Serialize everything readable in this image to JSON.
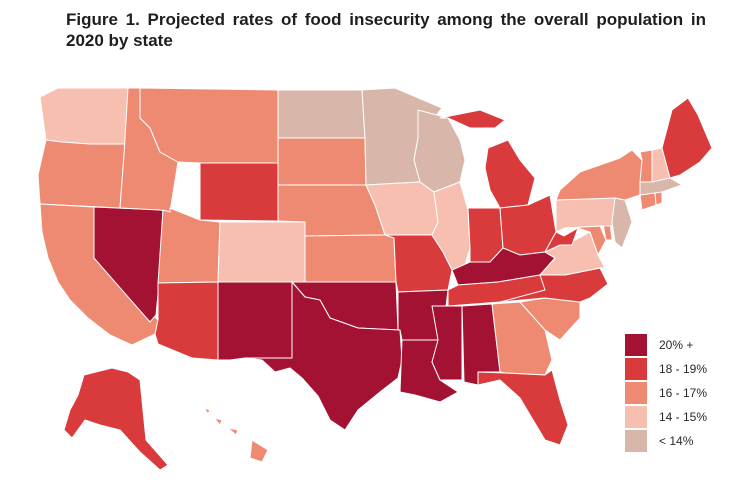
{
  "title": "Figure 1. Projected rates of food insecurity among the overall population in 2020 by state",
  "colors": {
    "c20": "#a31233",
    "c18": "#d93a3c",
    "c16": "#ef8a72",
    "c14": "#f7bfb0",
    "c12": "#d8b6aa",
    "border": "#ffffff"
  },
  "legend": [
    {
      "label": "20% +",
      "color": "#a31233"
    },
    {
      "label": "18 - 19%",
      "color": "#d93a3c"
    },
    {
      "label": "16 - 17%",
      "color": "#ef8a72"
    },
    {
      "label": "14 - 15%",
      "color": "#f7bfb0"
    },
    {
      "label": "< 14%",
      "color": "#d8b6aa"
    }
  ],
  "states": [
    {
      "name": "Washington",
      "class": "14 - 15%"
    },
    {
      "name": "Oregon",
      "class": "16 - 17%"
    },
    {
      "name": "California",
      "class": "16 - 17%"
    },
    {
      "name": "Nevada",
      "class": "20% +"
    },
    {
      "name": "Idaho",
      "class": "16 - 17%"
    },
    {
      "name": "Montana",
      "class": "16 - 17%"
    },
    {
      "name": "Wyoming",
      "class": "18 - 19%"
    },
    {
      "name": "Utah",
      "class": "16 - 17%"
    },
    {
      "name": "Arizona",
      "class": "18 - 19%"
    },
    {
      "name": "Colorado",
      "class": "14 - 15%"
    },
    {
      "name": "New Mexico",
      "class": "20% +"
    },
    {
      "name": "North Dakota",
      "class": "< 14%"
    },
    {
      "name": "South Dakota",
      "class": "16 - 17%"
    },
    {
      "name": "Nebraska",
      "class": "16 - 17%"
    },
    {
      "name": "Kansas",
      "class": "16 - 17%"
    },
    {
      "name": "Oklahoma",
      "class": "20% +"
    },
    {
      "name": "Texas",
      "class": "20% +"
    },
    {
      "name": "Minnesota",
      "class": "< 14%"
    },
    {
      "name": "Iowa",
      "class": "14 - 15%"
    },
    {
      "name": "Missouri",
      "class": "18 - 19%"
    },
    {
      "name": "Arkansas",
      "class": "20% +"
    },
    {
      "name": "Louisiana",
      "class": "20% +"
    },
    {
      "name": "Wisconsin",
      "class": "< 14%"
    },
    {
      "name": "Illinois",
      "class": "14 - 15%"
    },
    {
      "name": "Michigan",
      "class": "18 - 19%"
    },
    {
      "name": "Indiana",
      "class": "18 - 19%"
    },
    {
      "name": "Ohio",
      "class": "18 - 19%"
    },
    {
      "name": "Kentucky",
      "class": "20% +"
    },
    {
      "name": "Tennessee",
      "class": "18 - 19%"
    },
    {
      "name": "Mississippi",
      "class": "20% +"
    },
    {
      "name": "Alabama",
      "class": "20% +"
    },
    {
      "name": "Georgia",
      "class": "16 - 17%"
    },
    {
      "name": "Florida",
      "class": "18 - 19%"
    },
    {
      "name": "South Carolina",
      "class": "16 - 17%"
    },
    {
      "name": "North Carolina",
      "class": "18 - 19%"
    },
    {
      "name": "Virginia",
      "class": "14 - 15%"
    },
    {
      "name": "West Virginia",
      "class": "18 - 19%"
    },
    {
      "name": "Maryland",
      "class": "16 - 17%"
    },
    {
      "name": "Delaware",
      "class": "16 - 17%"
    },
    {
      "name": "Pennsylvania",
      "class": "14 - 15%"
    },
    {
      "name": "New Jersey",
      "class": "< 14%"
    },
    {
      "name": "New York",
      "class": "16 - 17%"
    },
    {
      "name": "Connecticut",
      "class": "16 - 17%"
    },
    {
      "name": "Rhode Island",
      "class": "16 - 17%"
    },
    {
      "name": "Massachusetts",
      "class": "< 14%"
    },
    {
      "name": "Vermont",
      "class": "16 - 17%"
    },
    {
      "name": "New Hampshire",
      "class": "14 - 15%"
    },
    {
      "name": "Maine",
      "class": "18 - 19%"
    },
    {
      "name": "Alaska",
      "class": "18 - 19%"
    },
    {
      "name": "Hawaii",
      "class": "16 - 17%"
    }
  ]
}
